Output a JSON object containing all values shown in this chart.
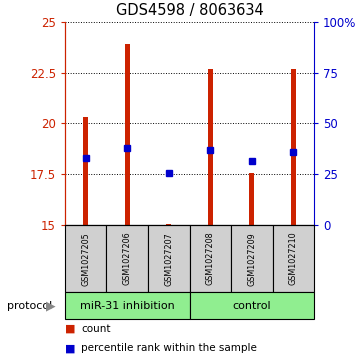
{
  "title": "GDS4598 / 8063634",
  "samples": [
    "GSM1027205",
    "GSM1027206",
    "GSM1027207",
    "GSM1027208",
    "GSM1027209",
    "GSM1027210"
  ],
  "red_top": [
    20.3,
    23.9,
    15.05,
    22.7,
    17.55,
    22.7
  ],
  "red_bottom": [
    15.0,
    15.0,
    15.0,
    15.0,
    15.0,
    15.0
  ],
  "blue_vals": [
    18.3,
    18.8,
    17.55,
    18.7,
    18.15,
    18.6
  ],
  "ylim": [
    15,
    25
  ],
  "yticks": [
    15,
    17.5,
    20,
    22.5,
    25
  ],
  "ytick_labels": [
    "15",
    "17.5",
    "20",
    "22.5",
    "25"
  ],
  "right_yticks": [
    0,
    25,
    50,
    75,
    100
  ],
  "right_ytick_labels": [
    "0",
    "25",
    "50",
    "75",
    "100%"
  ],
  "bar_color": "#CC2200",
  "dot_color": "#0000CC",
  "axis_color_left": "#CC2200",
  "axis_color_right": "#0000CC",
  "group1_label": "miR-31 inhibition",
  "group2_label": "control",
  "group1_indices": [
    0,
    1,
    2
  ],
  "group2_indices": [
    3,
    4,
    5
  ],
  "protocol_label": "protocol",
  "legend_count": "count",
  "legend_percentile": "percentile rank within the sample",
  "bar_width": 0.12,
  "sample_box_color": "#D0D0D0",
  "group_box_color": "#90EE90"
}
